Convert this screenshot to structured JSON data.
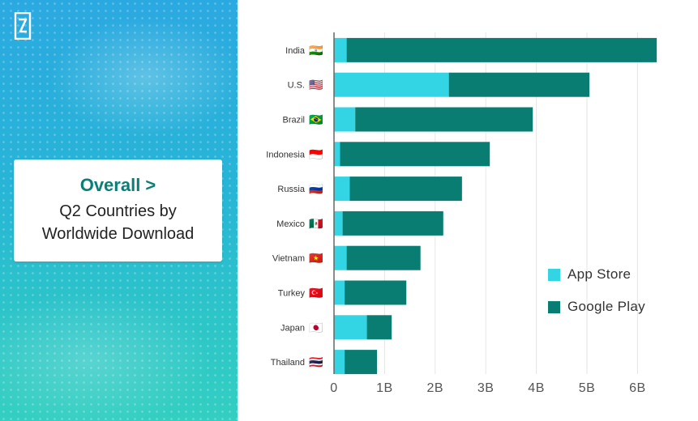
{
  "colors": {
    "accent_title": "#0a7f75",
    "app_store": "#33d4e3",
    "google_play": "#0a7d72",
    "grid": "#e6e6e6",
    "axis": "#666666"
  },
  "header": {
    "logo_icon": "brand-logo-icon",
    "title": "Overall >",
    "subtitle_line1": "Q2 Countries by",
    "subtitle_line2": "Worldwide Download"
  },
  "chart_data": {
    "type": "bar",
    "orientation": "horizontal",
    "stacked": true,
    "categories": [
      "India",
      "U.S.",
      "Brazil",
      "Indonesia",
      "Russia",
      "Mexico",
      "Vietnam",
      "Turkey",
      "Japan",
      "Thailand"
    ],
    "country_flags": [
      "🇮🇳",
      "🇺🇸",
      "🇧🇷",
      "🇮🇩",
      "🇷🇺",
      "🇲🇽",
      "🇻🇳",
      "🇹🇷",
      "🇯🇵",
      "🇹🇭"
    ],
    "series": [
      {
        "name": "App Store",
        "values": [
          0.25,
          2.27,
          0.42,
          0.12,
          0.31,
          0.17,
          0.25,
          0.21,
          0.65,
          0.21
        ]
      },
      {
        "name": "Google Play",
        "values": [
          6.13,
          2.78,
          3.51,
          2.96,
          2.22,
          1.99,
          1.46,
          1.22,
          0.49,
          0.64
        ]
      }
    ],
    "x_ticks": [
      "0",
      "1B",
      "2B",
      "3B",
      "4B",
      "5B",
      "6B"
    ],
    "xlim": [
      0,
      6.3
    ],
    "xlabel": "",
    "ylabel": "",
    "grid": true,
    "legend_position": "right"
  }
}
